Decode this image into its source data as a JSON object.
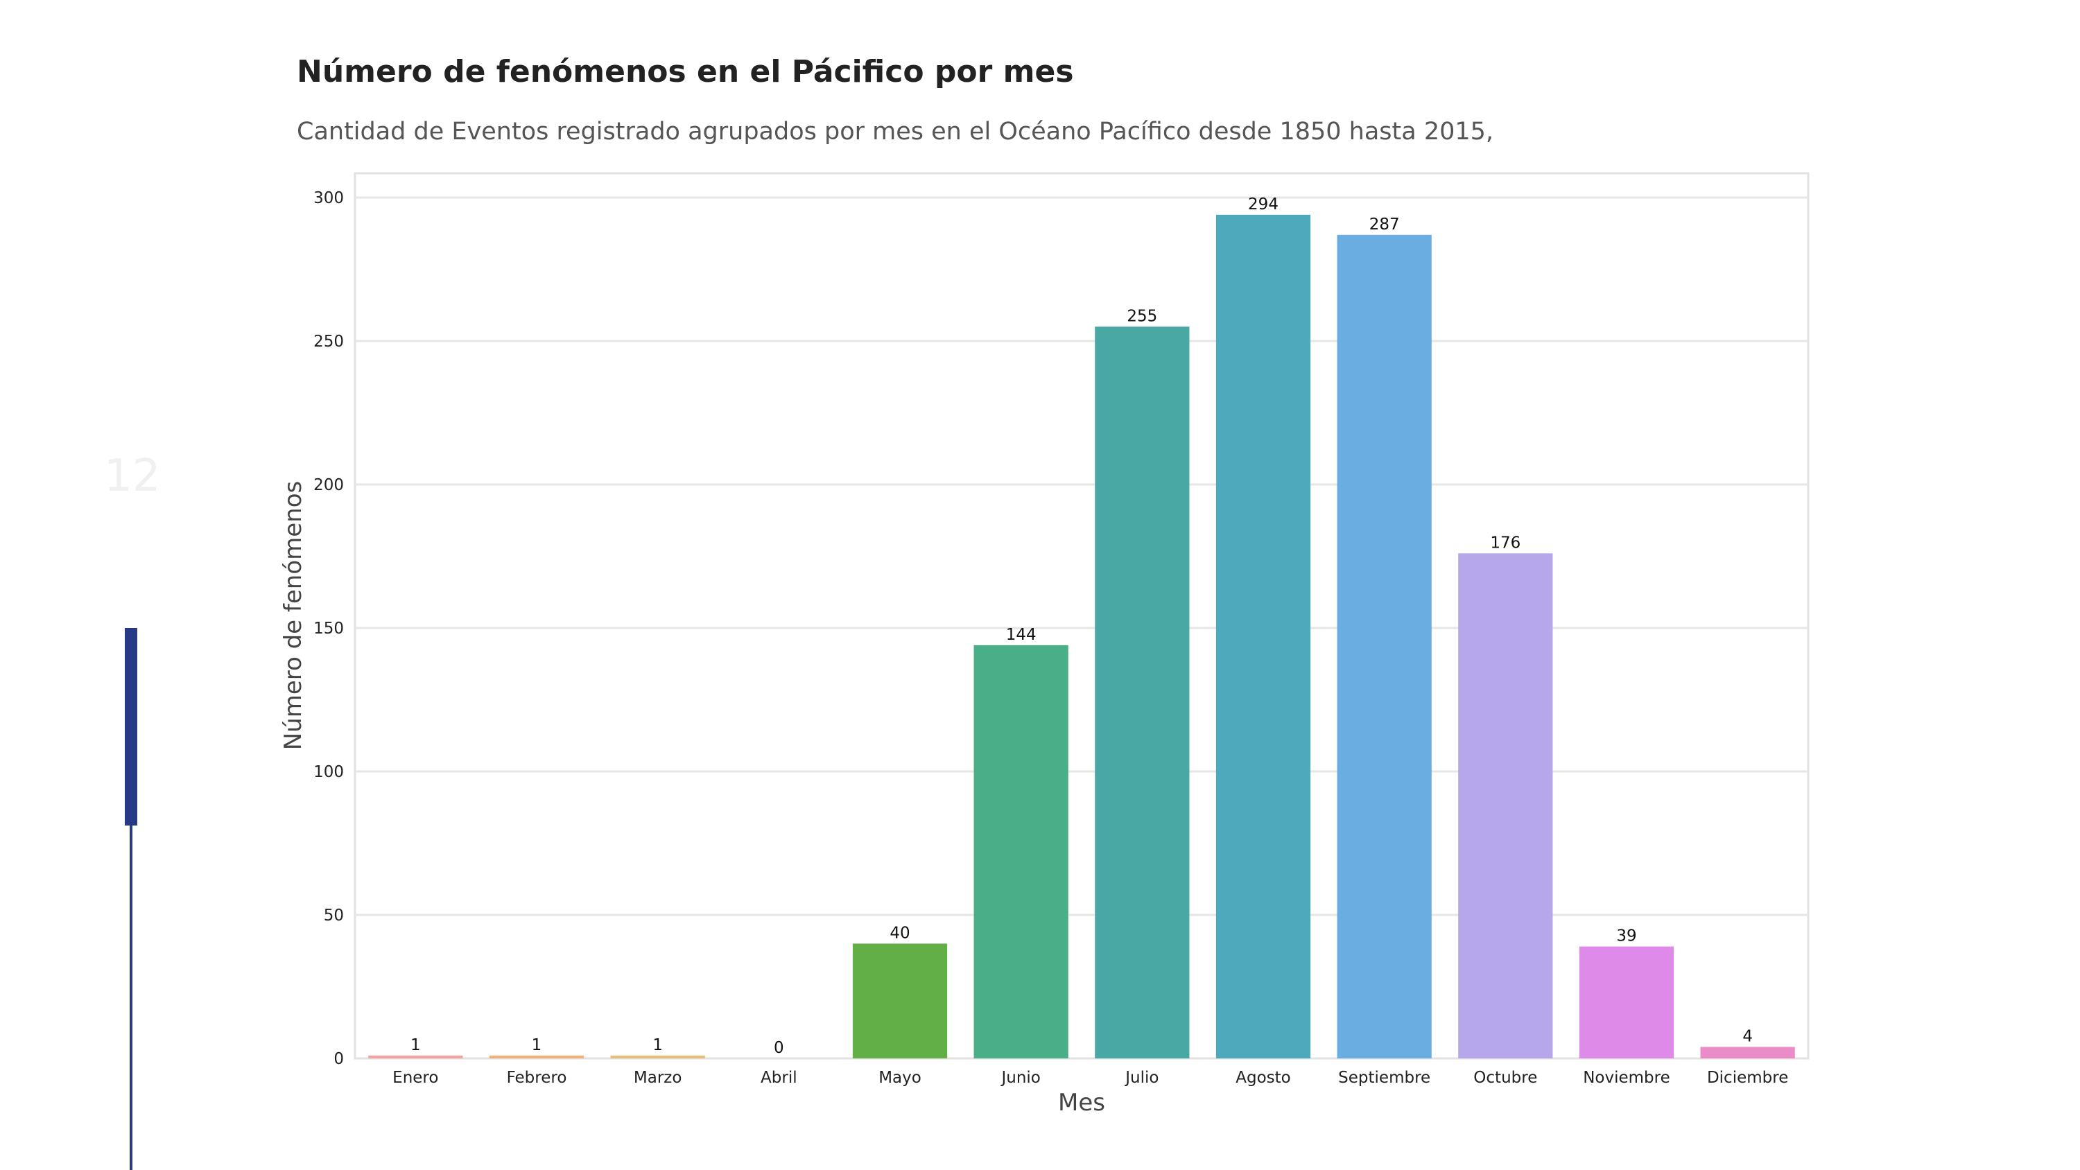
{
  "slide": {
    "number": "12"
  },
  "chart_data": {
    "type": "bar",
    "title": "Número de fenómenos en el Pácifico por mes",
    "subtitle": "Cantidad de Eventos registrado agrupados por mes en el Océano Pacífico desde 1850 hasta 2015,",
    "xlabel": "Mes",
    "ylabel": "Número de fenómenos",
    "categories": [
      "Enero",
      "Febrero",
      "Marzo",
      "Abril",
      "Mayo",
      "Junio",
      "Julio",
      "Agosto",
      "Septiembre",
      "Octubre",
      "Noviembre",
      "Diciembre"
    ],
    "values": [
      1,
      1,
      1,
      0,
      40,
      144,
      255,
      294,
      287,
      176,
      39,
      4
    ],
    "colors": [
      "#f4a3a0",
      "#f0b27a",
      "#e6c07a",
      "#c9c96a",
      "#62ae47",
      "#4aae88",
      "#4aa8a4",
      "#4fa9bd",
      "#6aade0",
      "#b6a6ea",
      "#de8ae8",
      "#ea8cc8"
    ],
    "ylim": [
      0,
      300
    ],
    "yticks": [
      0,
      50,
      100,
      150,
      200,
      250,
      300
    ],
    "grid": true
  },
  "colors": {
    "accent": "#263a85"
  }
}
